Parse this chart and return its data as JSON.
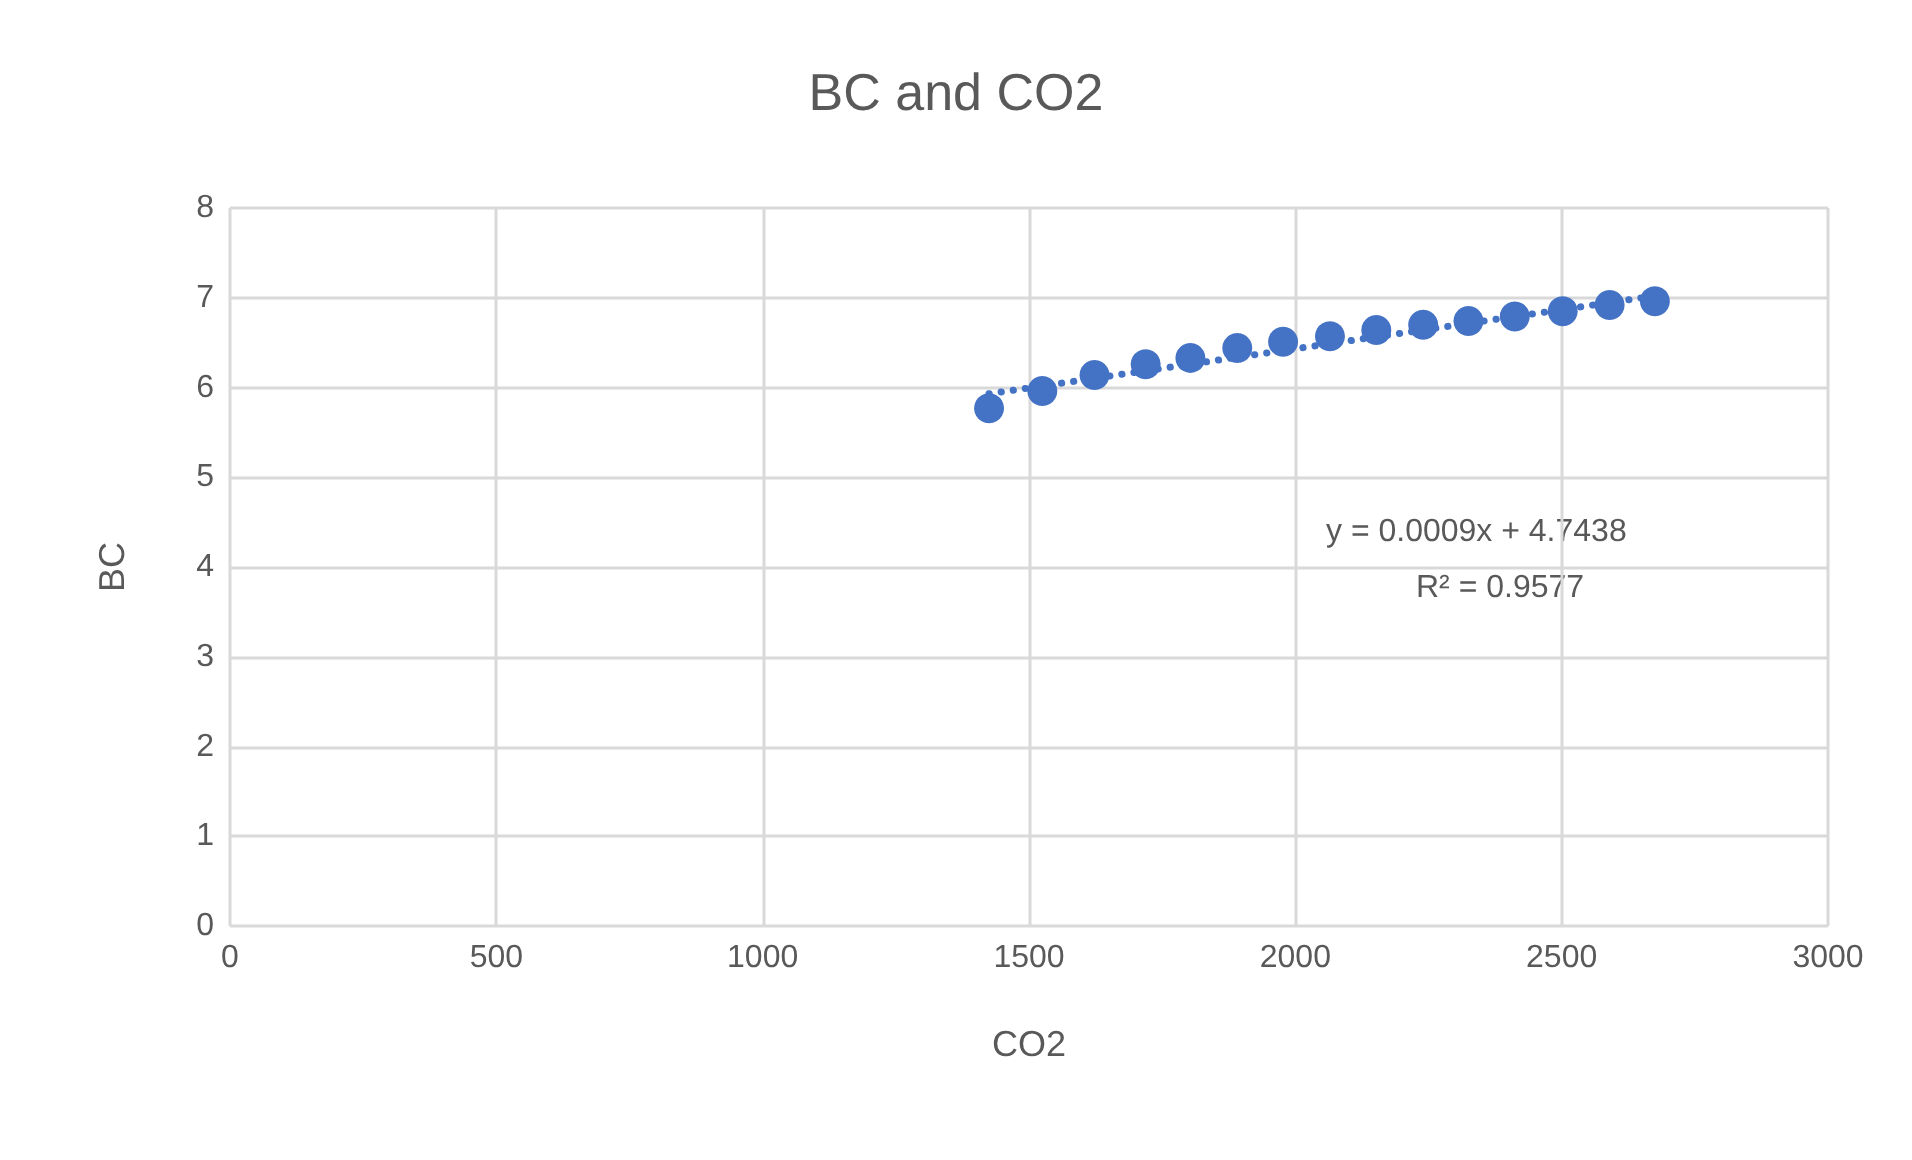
{
  "chart_data": {
    "type": "scatter",
    "title": "BC and CO2",
    "xlabel": "CO2",
    "ylabel": "BC",
    "x": [
      1425,
      1525,
      1623,
      1719,
      1803,
      1891,
      1977,
      2065,
      2152,
      2240,
      2325,
      2412,
      2502,
      2590,
      2675
    ],
    "series": [
      {
        "color": "#4472c4",
        "values": [
          5.77,
          5.96,
          6.14,
          6.26,
          6.33,
          6.44,
          6.51,
          6.57,
          6.64,
          6.7,
          6.74,
          6.79,
          6.85,
          6.92,
          6.96
        ]
      },
      {
        "type": "line",
        "color": "#4472c4",
        "line_style": "dotted",
        "marker": "none",
        "x": [
          1425,
          2675
        ],
        "values": [
          5.93,
          7.02
        ]
      }
    ],
    "marker": "circle",
    "xlim": [
      0,
      3000
    ],
    "xticks": [
      0,
      500,
      1000,
      1500,
      2000,
      2500,
      3000
    ],
    "ylim": [
      0,
      8
    ],
    "yticks": [
      0,
      1,
      2,
      3,
      4,
      5,
      6,
      7,
      8
    ],
    "grid": true,
    "annotations": [
      "y = 0.0009x + 4.7438",
      "R² = 0.9577"
    ]
  }
}
